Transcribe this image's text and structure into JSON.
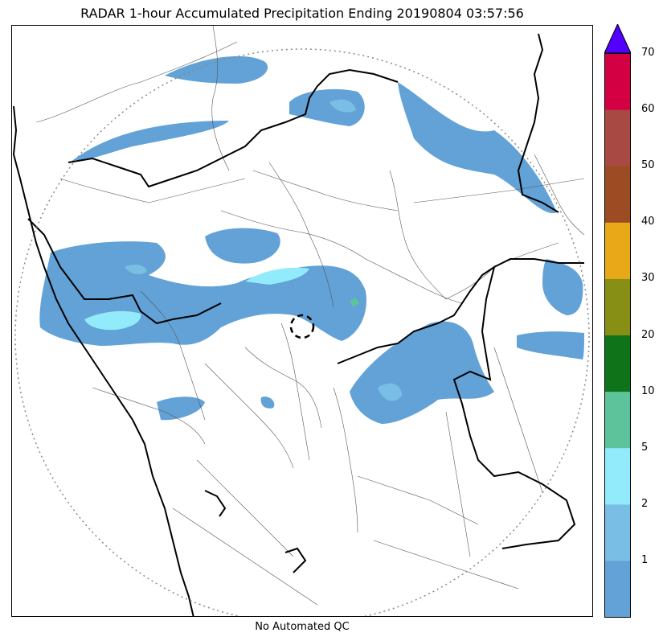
{
  "title": "RADAR 1-hour Accumulated Precipitation Ending 20190804 03:57:56",
  "footnote": "No Automated QC",
  "colorbar": {
    "labels": [
      "1",
      "2",
      "5",
      "10",
      "20",
      "30",
      "40",
      "50",
      "60",
      "70"
    ],
    "colors": [
      "#62a2d6",
      "#79bfe5",
      "#92ebfa",
      "#5dc39a",
      "#0f7319",
      "#878f14",
      "#e8a918",
      "#9b4c23",
      "#a84a43",
      "#d40044"
    ],
    "extend_color": "#5200ff"
  },
  "legend_swatches": {
    "light_rain": "#62a2d6",
    "moderate_rain": "#79bfe5",
    "heavy_rain": "#92ebfa",
    "very_heavy": "#5dc39a"
  }
}
